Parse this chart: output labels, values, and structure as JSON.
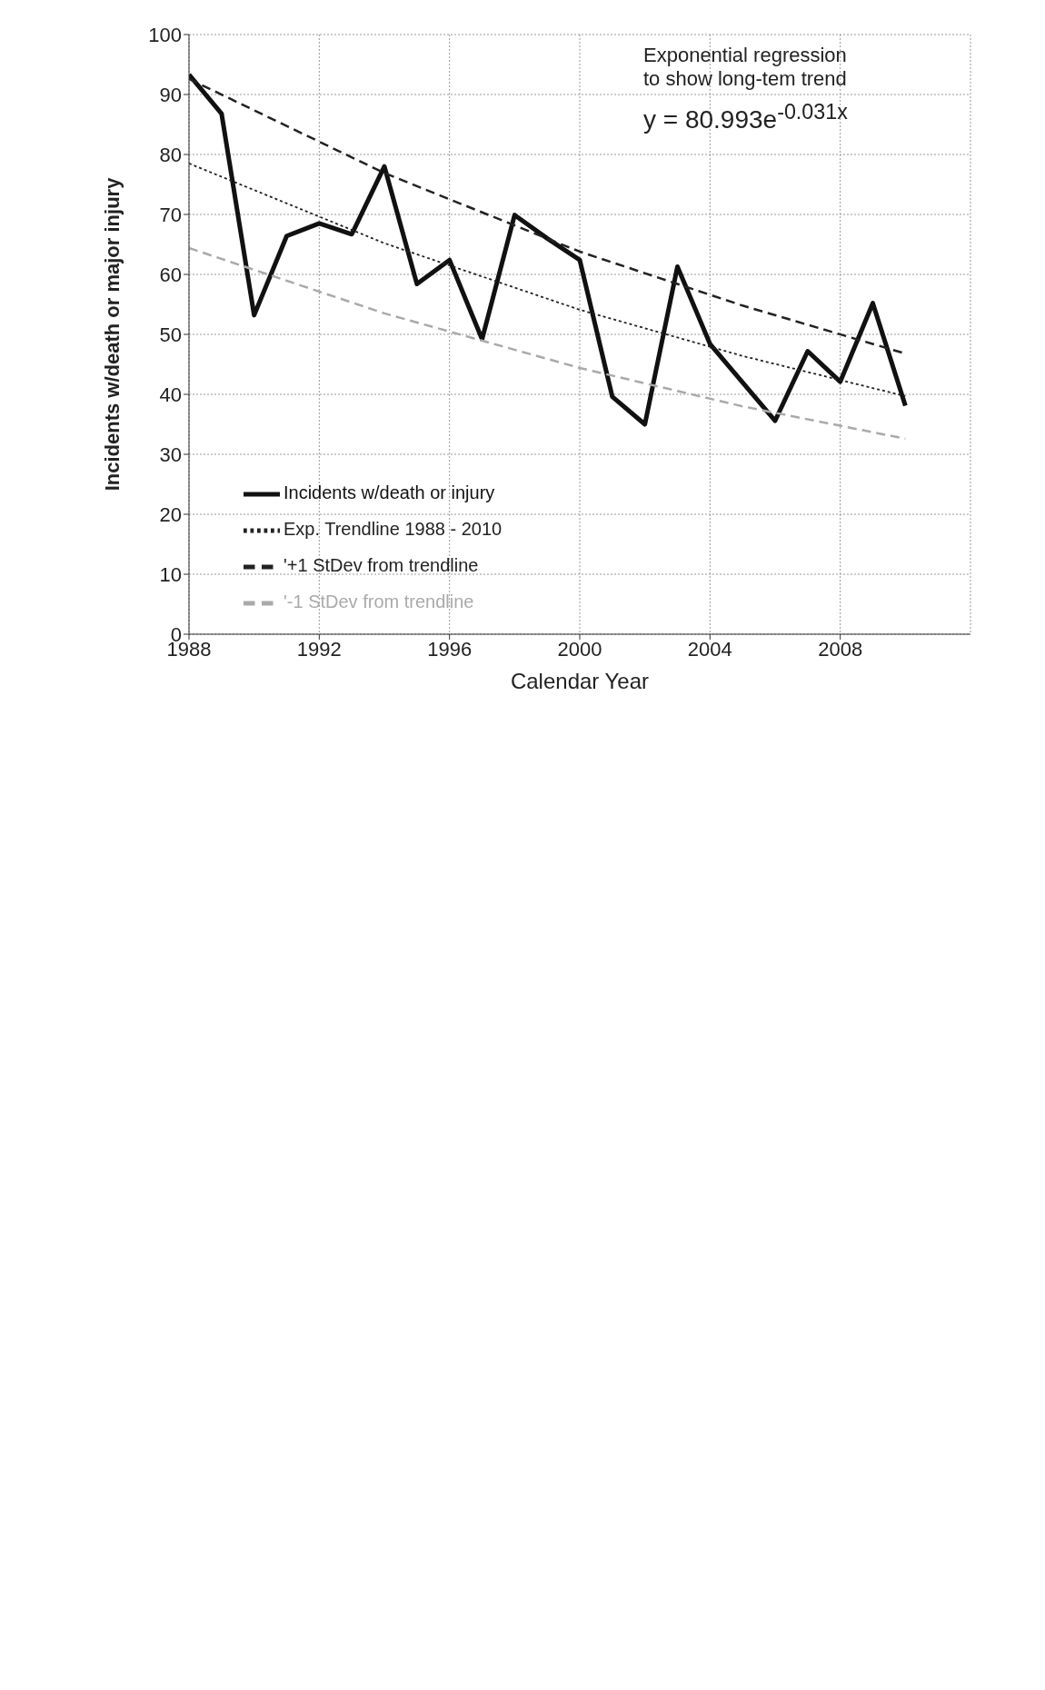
{
  "chart_data": {
    "type": "line",
    "xlabel": "Calendar Year",
    "ylabel": "Incidents w/death or major injury",
    "x": [
      1988,
      1989,
      1990,
      1991,
      1992,
      1993,
      1994,
      1995,
      1996,
      1997,
      1998,
      1999,
      2000,
      2001,
      2002,
      2003,
      2004,
      2005,
      2006,
      2007,
      2008,
      2009,
      2010
    ],
    "series": [
      {
        "name": "Incidents w/death  or injury",
        "color": "#111111",
        "line_style": "solid",
        "values": [
          93.3,
          86.8,
          53.2,
          66.4,
          68.5,
          66.7,
          78.0,
          58.4,
          62.4,
          49.2,
          69.9,
          66.0,
          62.4,
          39.6,
          35.0,
          61.3,
          48.4,
          42.0,
          35.6,
          47.2,
          42.1,
          55.2,
          38.1
        ]
      },
      {
        "name": "Exp. Trendline   1988 - 2010",
        "color": "#222222",
        "line_style": "dotted",
        "x": [
          1988,
          1994,
          2000,
          2005,
          2010
        ],
        "values": [
          78.5,
          65.2,
          54.1,
          46.4,
          39.7
        ]
      },
      {
        "name": "'+1 StDev from trendline",
        "color": "#222222",
        "line_style": "dashed",
        "x": [
          1988,
          1994,
          2000,
          2005,
          2010
        ],
        "values": [
          92.6,
          76.9,
          63.8,
          54.8,
          46.8
        ]
      },
      {
        "name": "'-1 StDev from trendline",
        "color": "#aaaaaa",
        "line_style": "dashed",
        "x": [
          1988,
          1994,
          2000,
          2005,
          2010
        ],
        "values": [
          64.4,
          53.5,
          44.4,
          38.0,
          32.6
        ]
      }
    ],
    "xlim": [
      1988,
      2012
    ],
    "xticks": [
      1988,
      1992,
      1996,
      2000,
      2004,
      2008
    ],
    "ylim": [
      0,
      100
    ],
    "yticks": [
      0,
      10,
      20,
      30,
      40,
      50,
      60,
      70,
      80,
      90,
      100
    ],
    "grid": true,
    "legend": "bottom left",
    "marker": "none",
    "annotations": [
      "Exponential regression\nto show long-tem trend",
      "y = 80.993e$^{-0.031x}$"
    ]
  }
}
